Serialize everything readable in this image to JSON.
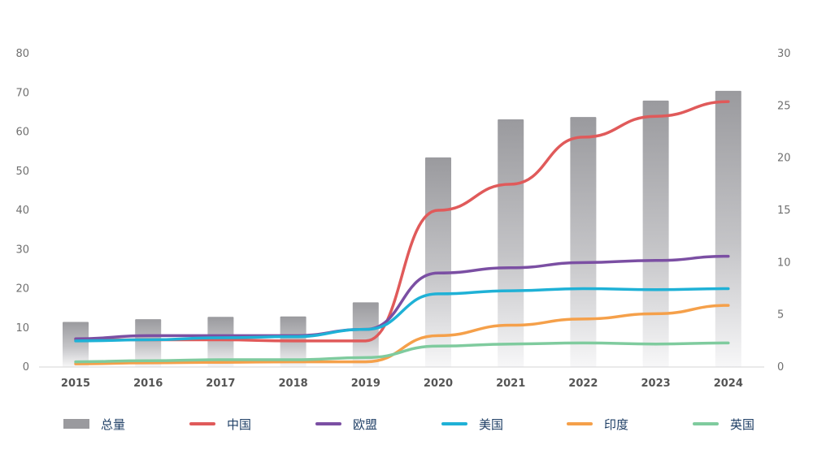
{
  "chart_data": {
    "type": "bar+line",
    "categories": [
      "2015",
      "2016",
      "2017",
      "2018",
      "2019",
      "2020",
      "2021",
      "2022",
      "2023",
      "2024"
    ],
    "left_axis": {
      "ylim": [
        0,
        80
      ],
      "ticks": [
        "0",
        "10",
        "20",
        "30",
        "40",
        "50",
        "60",
        "70",
        "80"
      ]
    },
    "right_axis": {
      "ylim": [
        0,
        30
      ],
      "ticks": [
        "0",
        "5",
        "10",
        "15",
        "20",
        "25",
        "30"
      ]
    },
    "bars": {
      "name": "总量",
      "axis": "left",
      "color": "#9a9a9e",
      "values": [
        11.5,
        12.2,
        12.8,
        12.9,
        16.5,
        53.5,
        63.2,
        63.8,
        68.0,
        70.5
      ]
    },
    "series": [
      {
        "name": "中国",
        "axis": "right",
        "color": "#e05a5a",
        "values": [
          2.6,
          2.6,
          2.6,
          2.5,
          2.5,
          15.0,
          17.5,
          22.0,
          24.0,
          25.4
        ]
      },
      {
        "name": "欧盟",
        "axis": "right",
        "color": "#7b4fa3",
        "values": [
          2.7,
          3.0,
          3.0,
          3.0,
          3.6,
          9.0,
          9.5,
          10.0,
          10.2,
          10.6
        ]
      },
      {
        "name": "美国",
        "axis": "right",
        "color": "#1fb1d6",
        "values": [
          2.5,
          2.6,
          2.8,
          2.9,
          3.6,
          7.0,
          7.3,
          7.5,
          7.4,
          7.5
        ]
      },
      {
        "name": "印度",
        "axis": "right",
        "color": "#f5a04a",
        "values": [
          0.3,
          0.4,
          0.45,
          0.5,
          0.5,
          3.0,
          4.0,
          4.6,
          5.1,
          5.9
        ]
      },
      {
        "name": "英国",
        "axis": "right",
        "color": "#7fcb9e",
        "values": [
          0.5,
          0.6,
          0.7,
          0.7,
          0.9,
          2.0,
          2.2,
          2.3,
          2.2,
          2.3
        ]
      }
    ],
    "grid": false,
    "legend_position": "bottom"
  }
}
